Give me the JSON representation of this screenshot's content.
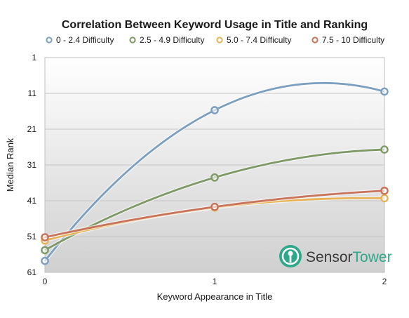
{
  "chart_data": {
    "type": "line",
    "title": "Correlation Between Keyword Usage in Title and Ranking",
    "xlabel": "Keyword Appearance in Title",
    "ylabel": "Median Rank",
    "x": [
      0,
      1,
      2
    ],
    "x_ticks": [
      "0",
      "1",
      "2"
    ],
    "y_ticks": [
      "1",
      "11",
      "21",
      "31",
      "41",
      "51",
      "61"
    ],
    "ylim": [
      1,
      61
    ],
    "y_inverted": true,
    "grid": "horizontal",
    "legend_position": "top",
    "series": [
      {
        "name": "0 - 2.4 Difficulty",
        "values": [
          57.8,
          15.7,
          10.5
        ],
        "color": "#7d9fbf"
      },
      {
        "name": "2.5 - 4.9 Difficulty",
        "values": [
          54.8,
          34.5,
          26.7
        ],
        "color": "#7e9966"
      },
      {
        "name": "5.0 - 7.4 Difficulty",
        "values": [
          52.1,
          42.9,
          40.3
        ],
        "color": "#e8b357"
      },
      {
        "name": "7.5 - 10 Difficulty",
        "values": [
          51.2,
          42.7,
          38.2
        ],
        "color": "#c8735b"
      }
    ]
  },
  "logo": {
    "part1": "Sensor",
    "part2": "Tower",
    "color": "#2ea88a"
  }
}
